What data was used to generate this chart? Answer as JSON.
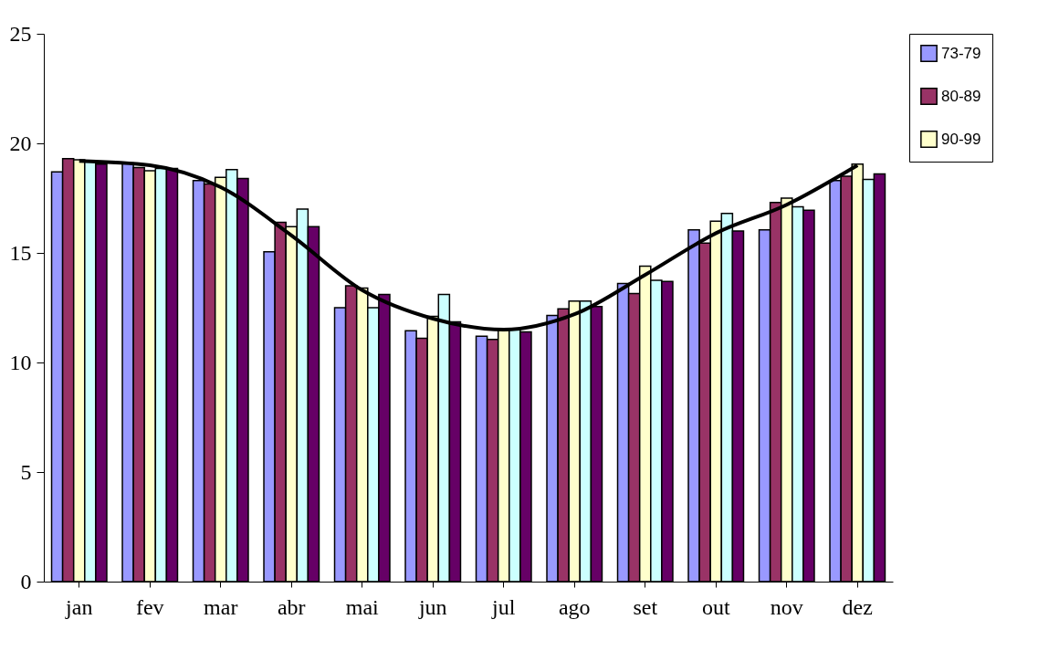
{
  "chart_data": {
    "type": "bar",
    "categories": [
      "jan",
      "fev",
      "mar",
      "abr",
      "mai",
      "jun",
      "jul",
      "ago",
      "set",
      "out",
      "nov",
      "dez"
    ],
    "series": [
      {
        "name": "73-79",
        "color": "#9999ff",
        "values": [
          18.7,
          19.1,
          18.3,
          15.05,
          12.5,
          11.45,
          11.2,
          12.15,
          13.6,
          16.05,
          16.05,
          18.3
        ]
      },
      {
        "name": "80-89",
        "color": "#993366",
        "values": [
          19.3,
          18.9,
          18.15,
          16.4,
          13.5,
          11.1,
          11.05,
          12.45,
          13.15,
          15.45,
          17.3,
          18.5
        ]
      },
      {
        "name": "90-99",
        "color": "#ffffcc",
        "values": [
          19.25,
          18.75,
          18.45,
          16.2,
          13.4,
          12.1,
          11.5,
          12.8,
          14.4,
          16.45,
          17.5,
          19.05
        ]
      },
      {
        "color": "#ccffff",
        "values": [
          19.2,
          18.85,
          18.8,
          17.0,
          12.5,
          13.1,
          11.55,
          12.8,
          13.75,
          16.8,
          17.1,
          18.35
        ]
      },
      {
        "color": "#660066",
        "values": [
          19.05,
          18.85,
          18.4,
          16.2,
          13.1,
          11.85,
          11.4,
          12.55,
          13.7,
          16.0,
          16.95,
          18.6
        ]
      },
      {
        "type": "line",
        "color": "#000000",
        "values": [
          19.2,
          19.0,
          18.0,
          15.8,
          13.3,
          12.0,
          11.5,
          12.2,
          14.0,
          15.9,
          17.2,
          19.0
        ]
      }
    ],
    "ylim": [
      0,
      25
    ],
    "yticks": [
      0,
      5,
      10,
      15,
      20,
      25
    ],
    "grid": false,
    "legend": "right"
  }
}
